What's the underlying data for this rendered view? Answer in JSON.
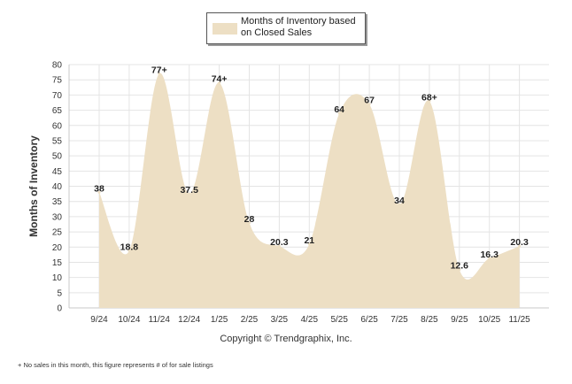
{
  "chart_data": {
    "type": "area",
    "title": "",
    "xlabel": "",
    "ylabel": "Months of Inventory",
    "ylim": [
      0,
      80
    ],
    "yticks": [
      0,
      5,
      10,
      15,
      20,
      25,
      30,
      35,
      40,
      45,
      50,
      55,
      60,
      65,
      70,
      75,
      80
    ],
    "categories": [
      "9/24",
      "10/24",
      "11/24",
      "12/24",
      "1/25",
      "2/25",
      "3/25",
      "4/25",
      "5/25",
      "6/25",
      "7/25",
      "8/25",
      "9/25",
      "10/25",
      "11/25"
    ],
    "series": [
      {
        "name": "Months of Inventory based on Closed Sales",
        "values": [
          38,
          18.8,
          77,
          37.5,
          74,
          28,
          20.3,
          21,
          64,
          67,
          34,
          68,
          12.6,
          16.3,
          20.3
        ],
        "labels": [
          "38",
          "18.8",
          "77+",
          "37.5",
          "74+",
          "28",
          "20.3",
          "21",
          "64",
          "67",
          "34",
          "68+",
          "12.6",
          "16.3",
          "20.3"
        ]
      }
    ],
    "legend": "top-center",
    "grid": true
  },
  "colors": {
    "area_fill": "#eddfc4",
    "grid": "#e4e4e4",
    "text": "#222222"
  },
  "legend_label": "Months of Inventory based on Closed Sales",
  "copyright": "Copyright © Trendgraphix, Inc.",
  "footnote": "+ No sales in this month, this figure represents # of for sale listings"
}
